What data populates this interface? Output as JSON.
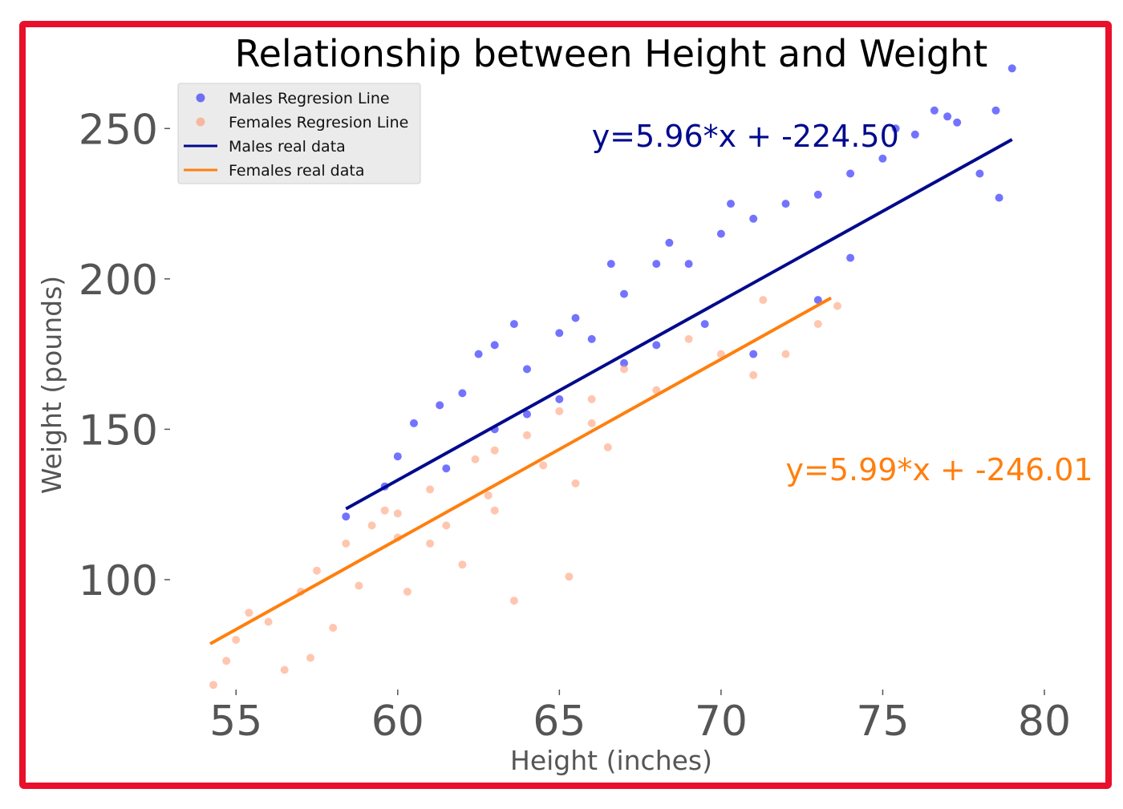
{
  "chart_data": {
    "type": "scatter",
    "title": "Relationship between Height and Weight",
    "xlabel": "Height (inches)",
    "ylabel": "Weight (pounds)",
    "xlim": [
      54.2,
      80
    ],
    "ylim": [
      60,
      273
    ],
    "xticks": [
      55,
      60,
      65,
      70,
      75,
      80
    ],
    "yticks": [
      100,
      150,
      200,
      250
    ],
    "grid": false,
    "legend_position": "top-left",
    "legend": [
      {
        "label": "Males Regresion Line",
        "kind": "marker",
        "color": "#6f6ff2"
      },
      {
        "label": "Females Regresion Line",
        "kind": "marker",
        "color": "#f7b8a0"
      },
      {
        "label": "Males real data",
        "kind": "line",
        "color": "#000a8c"
      },
      {
        "label": "Females real data",
        "kind": "line",
        "color": "#ff7f0e"
      }
    ],
    "series": [
      {
        "name": "Males",
        "kind": "scatter",
        "color": "#0000ff",
        "points": [
          [
            58.4,
            121
          ],
          [
            59.6,
            131
          ],
          [
            60.0,
            141
          ],
          [
            60.5,
            152
          ],
          [
            61.3,
            158
          ],
          [
            62.0,
            162
          ],
          [
            62.5,
            175
          ],
          [
            63.0,
            178
          ],
          [
            63.6,
            185
          ],
          [
            64.0,
            170
          ],
          [
            65.0,
            182
          ],
          [
            65.5,
            187
          ],
          [
            66.0,
            180
          ],
          [
            66.6,
            205
          ],
          [
            67.0,
            195
          ],
          [
            68.0,
            205
          ],
          [
            68.4,
            212
          ],
          [
            69.0,
            205
          ],
          [
            70.0,
            215
          ],
          [
            70.3,
            225
          ],
          [
            71.0,
            220
          ],
          [
            72.0,
            225
          ],
          [
            73.0,
            228
          ],
          [
            74.0,
            235
          ],
          [
            75.0,
            240
          ],
          [
            75.4,
            250
          ],
          [
            76.0,
            248
          ],
          [
            76.6,
            256
          ],
          [
            77.0,
            254
          ],
          [
            77.3,
            252
          ],
          [
            78.0,
            235
          ],
          [
            78.5,
            256
          ],
          [
            78.6,
            227
          ],
          [
            79.0,
            270
          ],
          [
            74.0,
            207
          ],
          [
            73.0,
            193
          ],
          [
            71.0,
            175
          ],
          [
            69.5,
            185
          ],
          [
            68.0,
            178
          ],
          [
            67.0,
            172
          ],
          [
            65.0,
            160
          ],
          [
            64.0,
            155
          ],
          [
            63.0,
            150
          ],
          [
            61.5,
            137
          ]
        ]
      },
      {
        "name": "Females",
        "kind": "scatter",
        "color": "#ffa07a",
        "points": [
          [
            54.3,
            65
          ],
          [
            54.7,
            73
          ],
          [
            55.0,
            80
          ],
          [
            55.4,
            89
          ],
          [
            56.0,
            86
          ],
          [
            56.5,
            70
          ],
          [
            57.0,
            96
          ],
          [
            57.5,
            103
          ],
          [
            57.3,
            74
          ],
          [
            58.0,
            84
          ],
          [
            58.4,
            112
          ],
          [
            58.8,
            98
          ],
          [
            59.2,
            118
          ],
          [
            59.6,
            123
          ],
          [
            60.0,
            114
          ],
          [
            60.3,
            96
          ],
          [
            61.0,
            130
          ],
          [
            61.5,
            118
          ],
          [
            62.0,
            105
          ],
          [
            62.4,
            140
          ],
          [
            62.8,
            128
          ],
          [
            63.0,
            143
          ],
          [
            63.6,
            93
          ],
          [
            64.0,
            148
          ],
          [
            64.5,
            138
          ],
          [
            65.0,
            156
          ],
          [
            65.3,
            101
          ],
          [
            65.5,
            132
          ],
          [
            66.0,
            160
          ],
          [
            66.5,
            144
          ],
          [
            67.0,
            170
          ],
          [
            68.0,
            163
          ],
          [
            69.0,
            180
          ],
          [
            70.0,
            175
          ],
          [
            71.0,
            168
          ],
          [
            71.3,
            193
          ],
          [
            72.0,
            175
          ],
          [
            73.0,
            185
          ],
          [
            73.6,
            191
          ],
          [
            63.0,
            123
          ],
          [
            61.0,
            112
          ],
          [
            60.0,
            122
          ],
          [
            66.0,
            152
          ]
        ]
      },
      {
        "name": "Males",
        "kind": "line",
        "color": "#000a8c",
        "slope": 5.96,
        "intercept": -224.5,
        "x_range": [
          58.4,
          79.0
        ]
      },
      {
        "name": "Females",
        "kind": "line",
        "color": "#ff7f0e",
        "slope": 5.99,
        "intercept": -246.01,
        "x_range": [
          54.2,
          73.4
        ]
      }
    ],
    "annotations": [
      {
        "text": "y=5.96*x + -224.50",
        "color": "#000a8c",
        "x": 66.0,
        "y": 244
      },
      {
        "text": "y=5.99*x + -246.01",
        "color": "#ff7f0e",
        "x": 72.0,
        "y": 133
      }
    ]
  }
}
